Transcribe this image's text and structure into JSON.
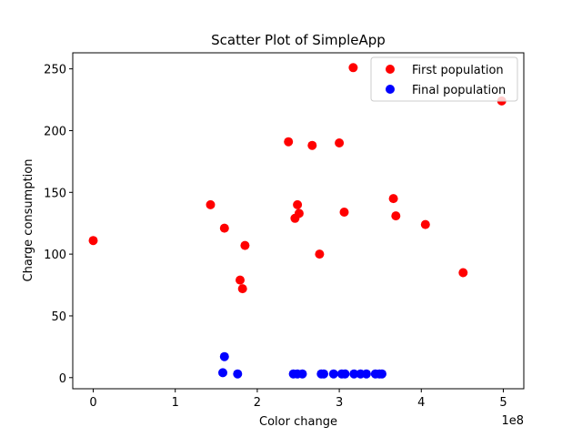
{
  "chart_data": {
    "type": "scatter",
    "title": "Scatter Plot of SimpleApp",
    "xlabel": "Color change",
    "ylabel": "Charge consumption",
    "x_offset_text": "1e8",
    "xlim": [
      -25000000,
      525000000
    ],
    "ylim": [
      -9,
      263
    ],
    "x_ticks": [
      0,
      100000000,
      200000000,
      300000000,
      400000000,
      500000000
    ],
    "x_tick_labels": [
      "0",
      "1",
      "2",
      "3",
      "4",
      "5"
    ],
    "y_ticks": [
      0,
      50,
      100,
      150,
      200,
      250
    ],
    "y_tick_labels": [
      "0",
      "50",
      "100",
      "150",
      "200",
      "250"
    ],
    "grid": false,
    "legend_position": "top-right",
    "series": [
      {
        "name": "First population",
        "color": "#ff0000",
        "points": [
          [
            0,
            111
          ],
          [
            143000000,
            140
          ],
          [
            160000000,
            121
          ],
          [
            179000000,
            79
          ],
          [
            182000000,
            72
          ],
          [
            185000000,
            107
          ],
          [
            238000000,
            191
          ],
          [
            246000000,
            129
          ],
          [
            249000000,
            140
          ],
          [
            251000000,
            133
          ],
          [
            267000000,
            188
          ],
          [
            276000000,
            100
          ],
          [
            300000000,
            190
          ],
          [
            306000000,
            134
          ],
          [
            317000000,
            251
          ],
          [
            366000000,
            145
          ],
          [
            369000000,
            131
          ],
          [
            405000000,
            124
          ],
          [
            451000000,
            85
          ],
          [
            498000000,
            224
          ]
        ]
      },
      {
        "name": "Final population",
        "color": "#0000ff",
        "points": [
          [
            158000000,
            4
          ],
          [
            160000000,
            17
          ],
          [
            176000000,
            3
          ],
          [
            244000000,
            3
          ],
          [
            249000000,
            3
          ],
          [
            255000000,
            3
          ],
          [
            278000000,
            3
          ],
          [
            281000000,
            3
          ],
          [
            293000000,
            3
          ],
          [
            303000000,
            3
          ],
          [
            307000000,
            3
          ],
          [
            318000000,
            3
          ],
          [
            326000000,
            3
          ],
          [
            333000000,
            3
          ],
          [
            344000000,
            3
          ],
          [
            349000000,
            3
          ],
          [
            352000000,
            3
          ]
        ]
      }
    ]
  }
}
